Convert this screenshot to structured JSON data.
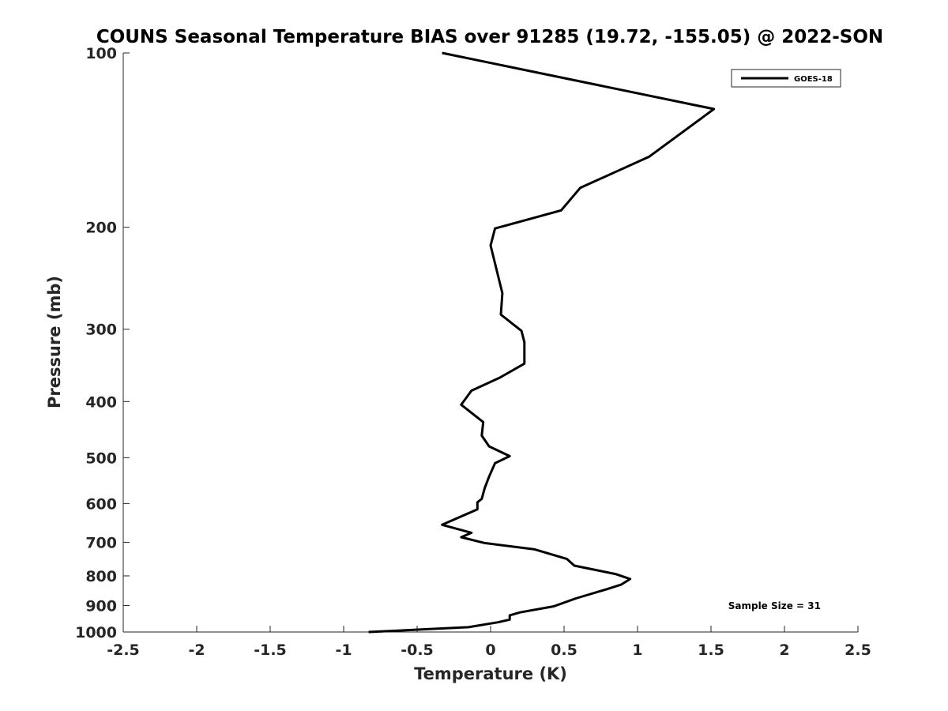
{
  "chart_data": {
    "type": "line",
    "title": "COUNS Seasonal Temperature BIAS over 91285 (19.72, -155.05) @ 2022-SON",
    "xlabel": "Temperature (K)",
    "ylabel": "Pressure (mb)",
    "xlim": [
      -2.5,
      2.5
    ],
    "ylim": [
      100,
      1000
    ],
    "y_scale": "log",
    "y_reversed": true,
    "grid": false,
    "legend_position": "top-right",
    "x_ticks": [
      -2.5,
      -2,
      -1.5,
      -1,
      -0.5,
      0,
      0.5,
      1,
      1.5,
      2,
      2.5
    ],
    "x_tick_labels": [
      "-2.5",
      "-2",
      "-1.5",
      "-1",
      "-0.5",
      "0",
      "0.5",
      "1",
      "1.5",
      "2",
      "2.5"
    ],
    "y_ticks": [
      100,
      200,
      300,
      400,
      500,
      600,
      700,
      800,
      900,
      1000
    ],
    "y_tick_labels": [
      "100",
      "200",
      "300",
      "400",
      "500",
      "600",
      "700",
      "800",
      "900",
      "1000"
    ],
    "series": [
      {
        "name": "GOES-18",
        "color": "#000000",
        "points": [
          [
            -0.33,
            100
          ],
          [
            1.52,
            125
          ],
          [
            1.08,
            151
          ],
          [
            0.61,
            171
          ],
          [
            0.48,
            187
          ],
          [
            0.03,
            201
          ],
          [
            0.0,
            215
          ],
          [
            0.08,
            260
          ],
          [
            0.07,
            283
          ],
          [
            0.21,
            302
          ],
          [
            0.23,
            316
          ],
          [
            0.23,
            344
          ],
          [
            0.06,
            364
          ],
          [
            -0.13,
            383
          ],
          [
            -0.2,
            405
          ],
          [
            -0.05,
            434
          ],
          [
            -0.06,
            458
          ],
          [
            -0.01,
            478
          ],
          [
            0.13,
            497
          ],
          [
            0.03,
            511
          ],
          [
            -0.01,
            539
          ],
          [
            -0.04,
            564
          ],
          [
            -0.06,
            589
          ],
          [
            -0.09,
            597
          ],
          [
            -0.09,
            614
          ],
          [
            -0.33,
            653
          ],
          [
            -0.13,
            674
          ],
          [
            -0.2,
            686
          ],
          [
            -0.04,
            702
          ],
          [
            0.3,
            720
          ],
          [
            0.52,
            748
          ],
          [
            0.57,
            768
          ],
          [
            0.85,
            794
          ],
          [
            0.95,
            810
          ],
          [
            0.89,
            828
          ],
          [
            0.78,
            845
          ],
          [
            0.58,
            875
          ],
          [
            0.43,
            903
          ],
          [
            0.2,
            925
          ],
          [
            0.13,
            936
          ],
          [
            0.13,
            952
          ],
          [
            0.05,
            962
          ],
          [
            -0.15,
            981
          ],
          [
            -0.83,
            1000
          ]
        ]
      }
    ],
    "annotations": [
      "Sample Size = 31"
    ]
  }
}
